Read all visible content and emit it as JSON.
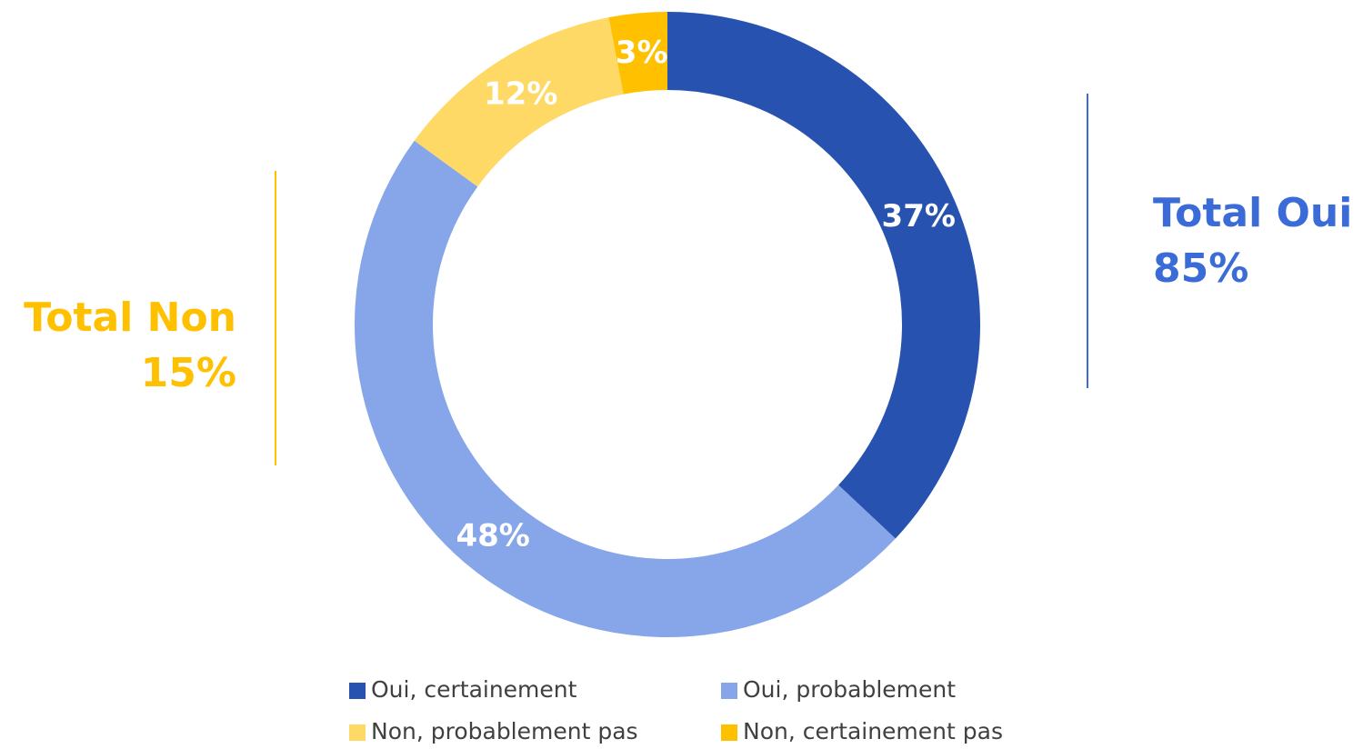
{
  "chart_data": {
    "type": "donut",
    "categories": [
      "Oui, certainement",
      "Oui, probablement",
      "Non, probablement pas",
      "Non, certainement pas"
    ],
    "values": [
      37,
      48,
      12,
      3
    ],
    "value_labels": [
      "37%",
      "48%",
      "12%",
      "3%"
    ],
    "colors": [
      "#2752b0",
      "#87a6ea",
      "#ffd966",
      "#ffc000"
    ],
    "legend": "bottom",
    "annotations": [
      {
        "lines": [
          "Total Oui",
          "85%"
        ],
        "color": "#3a6bd6",
        "side": "right"
      },
      {
        "lines": [
          "Total Non",
          "15%"
        ],
        "color": "#ffc000",
        "side": "left"
      }
    ]
  }
}
